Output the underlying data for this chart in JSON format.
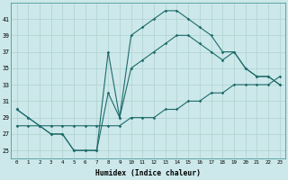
{
  "xlabel": "Humidex (Indice chaleur)",
  "bg_color": "#cce8ea",
  "line_color": "#1e6b6b",
  "grid_color": "#b0d0d0",
  "hours": [
    0,
    1,
    2,
    3,
    4,
    5,
    6,
    7,
    8,
    9,
    10,
    11,
    12,
    13,
    14,
    15,
    16,
    17,
    18,
    19,
    20,
    21,
    22,
    23
  ],
  "max_curve": [
    30,
    29,
    28,
    27,
    27,
    25,
    25,
    25,
    37,
    29,
    39,
    40,
    41,
    42,
    42,
    41,
    40,
    39,
    37,
    37,
    35,
    34,
    34,
    33
  ],
  "mean_curve": [
    30,
    29,
    28,
    27,
    27,
    25,
    25,
    25,
    32,
    29,
    35,
    36,
    37,
    38,
    39,
    39,
    38,
    37,
    36,
    37,
    35,
    34,
    34,
    33
  ],
  "min_curve": [
    28,
    28,
    28,
    28,
    28,
    28,
    28,
    28,
    28,
    28,
    29,
    29,
    29,
    30,
    30,
    31,
    31,
    32,
    32,
    33,
    33,
    33,
    33,
    34
  ],
  "ylim": [
    24,
    43
  ],
  "yticks": [
    25,
    27,
    29,
    31,
    33,
    35,
    37,
    39,
    41
  ],
  "xlim": [
    0,
    23
  ]
}
